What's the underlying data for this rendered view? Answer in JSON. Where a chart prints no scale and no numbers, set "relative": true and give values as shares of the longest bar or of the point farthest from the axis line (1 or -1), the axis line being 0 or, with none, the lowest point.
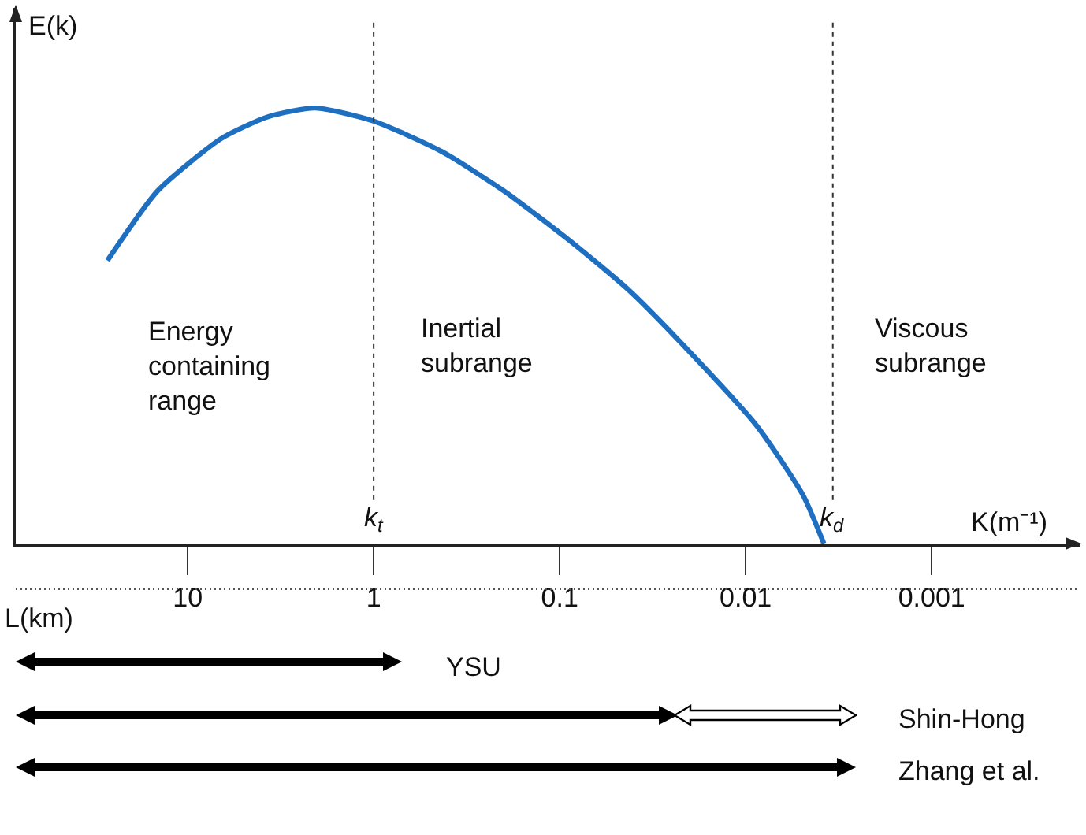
{
  "chart_data": {
    "type": "line",
    "relative": true,
    "ylabel": "E(k)",
    "xlabel": "L(km)",
    "log": "x",
    "xlim": [
      84,
      0.00016
    ],
    "xticks": [
      10,
      1,
      0.1,
      0.01,
      0.001
    ],
    "x": [
      27,
      14.5,
      6.6,
      3.7,
      2.06,
      1,
      0.43,
      0.2,
      0.091,
      0.042,
      0.019,
      0.0087,
      0.0049,
      0.0038
    ],
    "series": [
      {
        "color": "#1f6fc1",
        "values": [
          0.65,
          0.81,
          0.93,
          0.98,
          1,
          0.97,
          0.9,
          0.81,
          0.7,
          0.58,
          0.43,
          0.27,
          0.11,
          0
        ]
      }
    ],
    "line_style": "solid",
    "marker": "none",
    "grid": false,
    "ref_lines": [
      {
        "axis": "x",
        "value": 1,
        "label": "k$_{t}$",
        "line_style": "dotted",
        "color": "#333333"
      },
      {
        "axis": "x",
        "value": 0.0034,
        "label": "k$_{d}$",
        "line_style": "dotted",
        "color": "#333333"
      }
    ],
    "annotations": [
      "Energy\ncontaining\nrange",
      "Inertial\nsubrange",
      "Viscous\nsubrange",
      "K(m⁻¹)",
      "YSU",
      "Shin-Hong",
      "Zhang et al."
    ]
  }
}
